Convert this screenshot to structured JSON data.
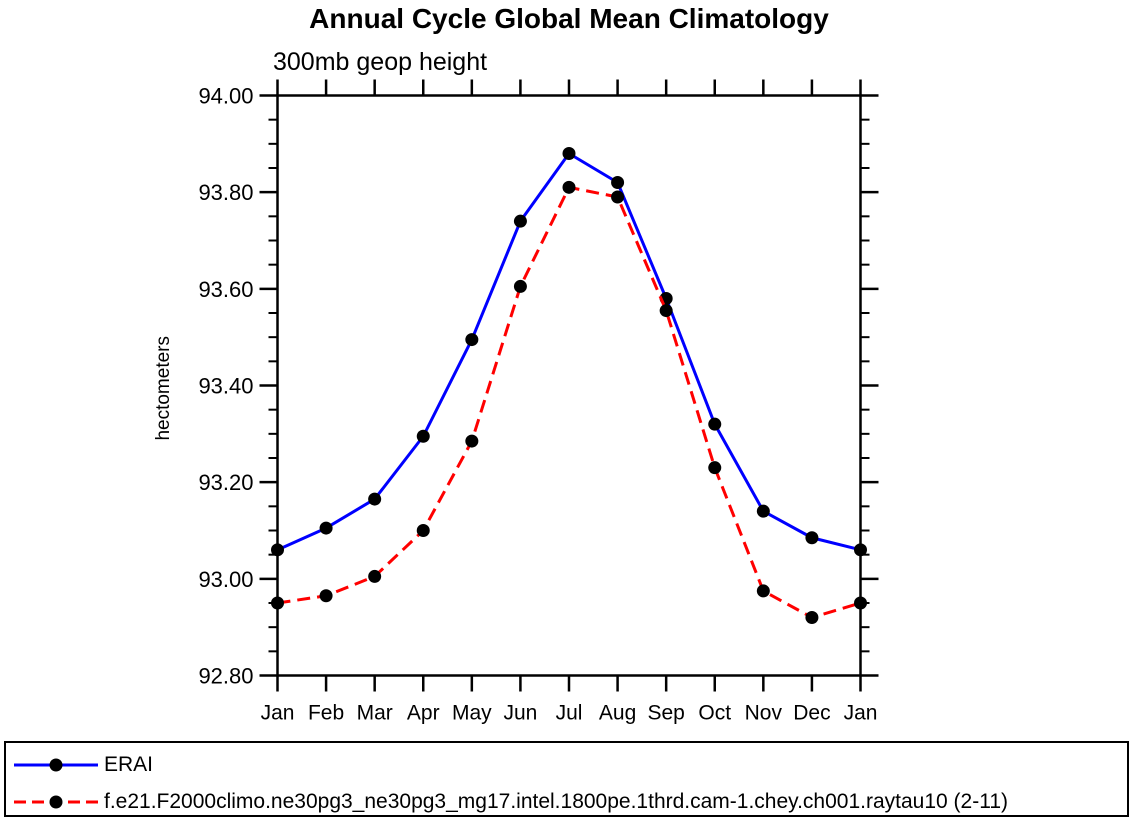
{
  "page": {
    "background": "#ffffff",
    "frame_color": "#000000"
  },
  "chart_data": {
    "type": "line",
    "title": "Annual Cycle Global Mean Climatology",
    "subtitle": "300mb geop height",
    "ylabel": "hectometers",
    "xlabel": "",
    "categories": [
      "Jan",
      "Feb",
      "Mar",
      "Apr",
      "May",
      "Jun",
      "Jul",
      "Aug",
      "Sep",
      "Oct",
      "Nov",
      "Dec",
      "Jan"
    ],
    "ylim": [
      92.8,
      94.0
    ],
    "ytick_values": [
      94.0,
      93.8,
      93.6,
      93.4,
      93.2,
      93.0,
      92.8
    ],
    "ytick_labels": [
      "94.00",
      "93.80",
      "93.60",
      "93.40",
      "93.20",
      "93.00",
      "92.80"
    ],
    "minor_tick_step": 0.05,
    "grid": false,
    "legend_position": "bottom",
    "series": [
      {
        "name": "ERAI",
        "color": "#0000ff",
        "line_style": "solid",
        "marker": "circle",
        "marker_color": "#000000",
        "values": [
          93.06,
          93.105,
          93.165,
          93.295,
          93.495,
          93.74,
          93.88,
          93.82,
          93.58,
          93.32,
          93.14,
          93.085,
          93.06
        ]
      },
      {
        "name": "f.e21.F2000climo.ne30pg3_ne30pg3_mg17.intel.1800pe.1thrd.cam-1.chey.ch001.raytau10 (2-11)",
        "color": "#ff0000",
        "line_style": "dashed",
        "marker": "circle",
        "marker_color": "#000000",
        "values": [
          92.95,
          92.965,
          93.005,
          93.1,
          93.285,
          93.605,
          93.81,
          93.79,
          93.555,
          93.23,
          92.975,
          92.92,
          92.95
        ]
      }
    ]
  }
}
